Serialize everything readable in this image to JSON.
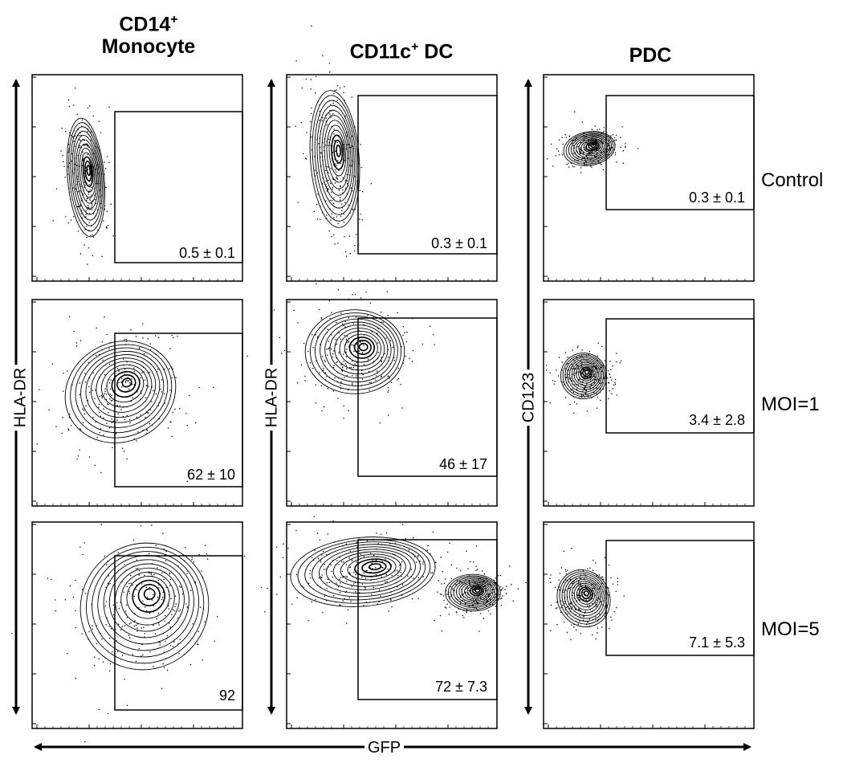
{
  "chart_data": {
    "type": "scatter",
    "description_type": "flow-cytometry-contour-grid",
    "columns": [
      {
        "title": "CD14",
        "title_sup": "+",
        "title_line2": "Monocyte",
        "y_axis": "HLA-DR"
      },
      {
        "title": "CD11c",
        "title_sup": "+",
        "title_suffix": " DC",
        "y_axis": "HLA-DR"
      },
      {
        "title": "PDC",
        "y_axis": "CD123"
      }
    ],
    "rows": [
      "Control",
      "MOI=1",
      "MOI=5"
    ],
    "x_axis": "GFP",
    "gate_percentages": [
      [
        "0.5 ± 0.1",
        "0.3 ± 0.1",
        "0.3 ± 0.1"
      ],
      [
        "62 ± 10",
        "46 ± 17",
        "3.4 ± 2.8"
      ],
      [
        "92",
        "72 ± 7.3",
        "7.1 ± 5.3"
      ]
    ]
  }
}
